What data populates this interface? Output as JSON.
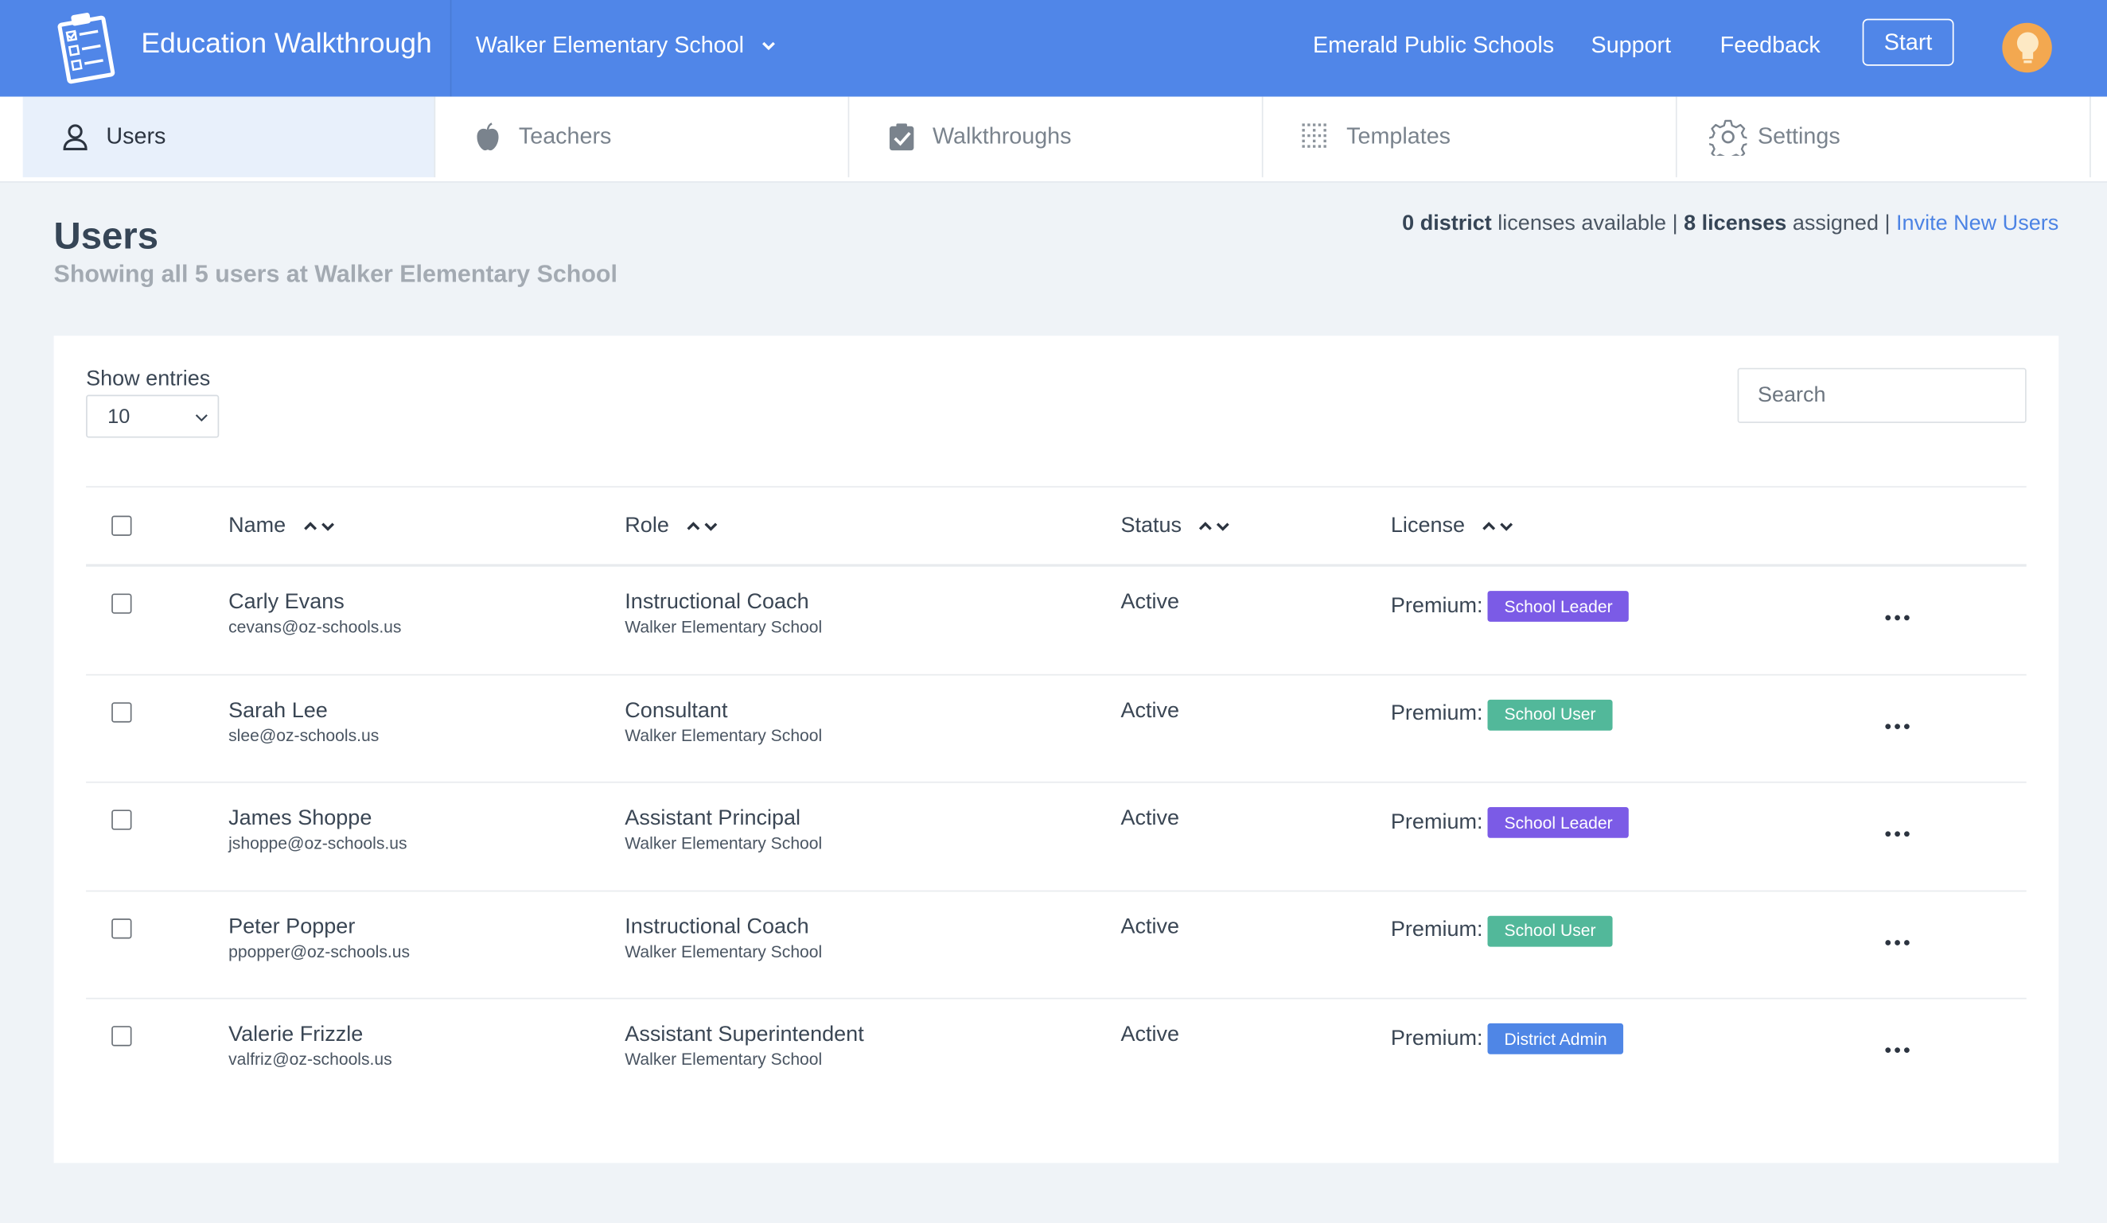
{
  "app": {
    "title": "Education Walkthrough",
    "school": "Walker Elementary School",
    "links": [
      "Emerald Public Schools",
      "Support",
      "Feedback"
    ],
    "start_label": "Start"
  },
  "tabs": [
    {
      "label": "Users",
      "icon": "user-icon"
    },
    {
      "label": "Teachers",
      "icon": "apple-icon"
    },
    {
      "label": "Walkthroughs",
      "icon": "clipboard-check-icon"
    },
    {
      "label": "Templates",
      "icon": "grid-dots-icon"
    },
    {
      "label": "Settings",
      "icon": "gear-icon"
    }
  ],
  "page": {
    "title": "Users",
    "subtitle": "Showing all 5 users at Walker Elementary School",
    "license_district_count": "0 district",
    "license_available_text": " licenses available | ",
    "license_assigned_count": "8 licenses",
    "license_assigned_text": " assigned | ",
    "invite_link": "Invite New Users"
  },
  "controls": {
    "show_entries_label": "Show entries",
    "entries_value": "10",
    "search_placeholder": "Search"
  },
  "table": {
    "headers": [
      "Name",
      "Role",
      "Status",
      "License"
    ],
    "rows": [
      {
        "name": "Carly Evans",
        "email": "cevans@oz-schools.us",
        "role": "Instructional Coach",
        "school": "Walker Elementary School",
        "status": "Active",
        "license_prefix": "Premium:",
        "license": "School Leader",
        "license_color": "#7b5be6"
      },
      {
        "name": "Sarah Lee",
        "email": "slee@oz-schools.us",
        "role": "Consultant",
        "school": "Walker Elementary School",
        "status": "Active",
        "license_prefix": "Premium:",
        "license": "School User",
        "license_color": "#52b89a"
      },
      {
        "name": "James Shoppe",
        "email": "jshoppe@oz-schools.us",
        "role": "Assistant Principal",
        "school": "Walker Elementary School",
        "status": "Active",
        "license_prefix": "Premium:",
        "license": "School Leader",
        "license_color": "#7b5be6"
      },
      {
        "name": "Peter Popper",
        "email": "ppopper@oz-schools.us",
        "role": "Instructional Coach",
        "school": "Walker Elementary School",
        "status": "Active",
        "license_prefix": "Premium:",
        "license": "School User",
        "license_color": "#52b89a"
      },
      {
        "name": "Valerie Frizzle",
        "email": "valfriz@oz-schools.us",
        "role": "Assistant Superintendent",
        "school": "Walker Elementary School",
        "status": "Active",
        "license_prefix": "Premium:",
        "license": "District Admin",
        "license_color": "#4f86e6"
      }
    ]
  },
  "colors": {
    "topbar": "#5086e8",
    "link": "#4c83e4"
  }
}
